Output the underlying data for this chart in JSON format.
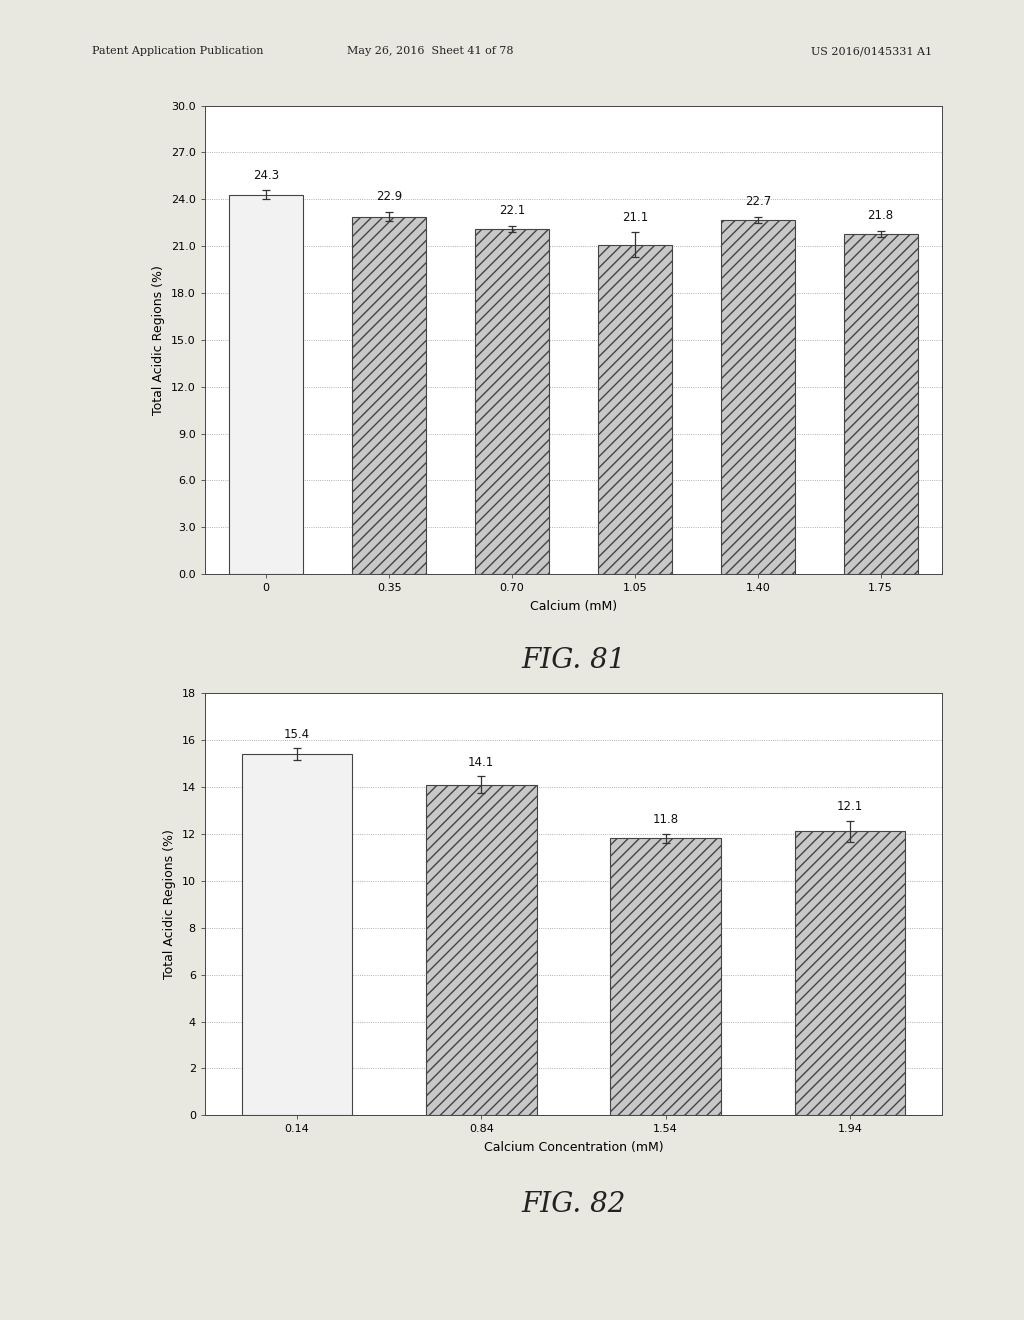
{
  "fig81": {
    "categories": [
      "0",
      "0.35",
      "0.70",
      "1.05",
      "1.40",
      "1.75"
    ],
    "values": [
      24.3,
      22.9,
      22.1,
      21.1,
      22.7,
      21.8
    ],
    "errors": [
      0.3,
      0.3,
      0.2,
      0.8,
      0.2,
      0.2
    ],
    "xlabel": "Calcium (mM)",
    "ylabel": "Total Acidic Regions (%)",
    "ylim": [
      0,
      30
    ],
    "ytick_labels": [
      "0.0",
      "3.0",
      "6.0",
      "9.0",
      "12.0",
      "15.0",
      "18.0",
      "21.0",
      "24.0",
      "27.0",
      "30.0"
    ],
    "ytick_vals": [
      0.0,
      3.0,
      6.0,
      9.0,
      12.0,
      15.0,
      18.0,
      21.0,
      24.0,
      27.0,
      30.0
    ],
    "fig_label": "FIG. 81",
    "first_bar_hatch": null,
    "other_bar_hatch": "///",
    "bar_color": "#c8c8c8",
    "first_bar_color": "#f2f2f2",
    "edge_color": "#444444"
  },
  "fig82": {
    "categories": [
      "0.14",
      "0.84",
      "1.54",
      "1.94"
    ],
    "values": [
      15.4,
      14.1,
      11.8,
      12.1
    ],
    "errors": [
      0.25,
      0.35,
      0.2,
      0.45
    ],
    "xlabel": "Calcium Concentration (mM)",
    "ylabel": "Total Acidic Regions (%)",
    "ylim": [
      0,
      18
    ],
    "ytick_labels": [
      "0",
      "2",
      "4",
      "6",
      "8",
      "10",
      "12",
      "14",
      "16",
      "18"
    ],
    "ytick_vals": [
      0,
      2,
      4,
      6,
      8,
      10,
      12,
      14,
      16,
      18
    ],
    "fig_label": "FIG. 82",
    "first_bar_hatch": null,
    "other_bar_hatch": "///",
    "bar_color": "#c8c8c8",
    "first_bar_color": "#f2f2f2",
    "edge_color": "#444444"
  },
  "header_left": "Patent Application Publication",
  "header_mid": "May 26, 2016  Sheet 41 of 78",
  "header_right": "US 2016/0145331 A1",
  "bg_color": "#ffffff",
  "page_bg": "#e8e8e0",
  "fig_label_fontsize": 20,
  "axis_label_fontsize": 9,
  "tick_label_fontsize": 8,
  "value_label_fontsize": 8.5,
  "header_fontsize": 8
}
